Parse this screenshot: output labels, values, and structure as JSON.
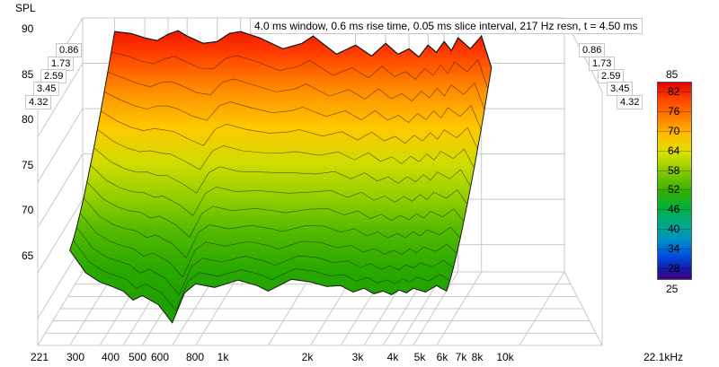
{
  "chart_data": {
    "type": "area",
    "title": "4.0 ms window, 0.6 ms rise time, 0.05 ms slice interval, 217 Hz resn, t = 4.50 ms",
    "ylabel": "SPL",
    "y_ticks": [
      "90",
      "85",
      "80",
      "75",
      "70",
      "65"
    ],
    "ylim": [
      62,
      90
    ],
    "x_scale": "log",
    "x_ticks": [
      "221",
      "300",
      "400",
      "500",
      "600",
      "800",
      "1k",
      "2k",
      "3k",
      "4k",
      "5k",
      "6k",
      "7k",
      "8k",
      "10k",
      "22.1kHz"
    ],
    "x_tick_values": [
      221,
      300,
      400,
      500,
      600,
      800,
      1000,
      2000,
      3000,
      4000,
      5000,
      6000,
      7000,
      8000,
      10000,
      22100
    ],
    "time_ticks": [
      "0.86",
      "1.73",
      "2.59",
      "3.45",
      "4.32"
    ],
    "time_range_ms": [
      0,
      4.5
    ],
    "colorbar": {
      "top_label": "85",
      "bottom_label": "25",
      "ticks": [
        "82",
        "76",
        "70",
        "64",
        "58",
        "52",
        "46",
        "40",
        "34",
        "28"
      ]
    },
    "series": [
      {
        "time_ms": 0,
        "frequency_hz": [
          300,
          350,
          400,
          450,
          500,
          550,
          600,
          700,
          800,
          900,
          1000,
          1200,
          1500,
          1800,
          2000,
          2500,
          3000,
          3500,
          4000,
          4500,
          5000,
          5500,
          6000,
          6500,
          7000,
          7500,
          8000,
          9000,
          10000,
          11000
        ],
        "spl_db": [
          88.5,
          88.3,
          87.8,
          87.5,
          88.2,
          88.6,
          88.0,
          87.2,
          87.4,
          88.3,
          88.5,
          87.8,
          86.6,
          87.2,
          88.0,
          86.0,
          87.0,
          85.8,
          87.2,
          86.0,
          86.6,
          85.7,
          87.0,
          86.2,
          87.4,
          86.4,
          87.8,
          86.6,
          88.0,
          84.5
        ]
      },
      {
        "time_ms": 4.5,
        "frequency_hz": [
          300,
          350,
          400,
          450,
          500,
          550,
          600,
          700,
          800,
          900,
          1000,
          1200,
          1500,
          1800,
          2000,
          2500,
          3000,
          3500,
          4000,
          4500,
          5000,
          5500,
          6000,
          6500,
          7000,
          7500,
          8000,
          9000,
          10000,
          11000
        ],
        "spl_db": [
          72.5,
          70.0,
          69.0,
          68.5,
          68.0,
          67.0,
          67.5,
          66.5,
          64.5,
          67.8,
          68.8,
          68.4,
          69.2,
          68.6,
          68.0,
          69.3,
          69.0,
          68.5,
          68.6,
          67.9,
          68.3,
          67.7,
          68.0,
          67.6,
          68.1,
          67.8,
          68.3,
          67.9,
          68.6,
          68.0
        ]
      }
    ],
    "colors": {
      "high": "#e80000",
      "mid_high": "#ffb000",
      "mid": "#c8dc00",
      "low": "#30b000",
      "outline": "#1a1a1a",
      "grid": "#c8c8c8"
    }
  }
}
